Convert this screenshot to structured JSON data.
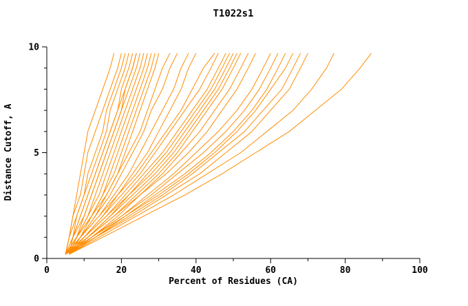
{
  "window": {
    "title": "T1022s1"
  },
  "chart_data": {
    "type": "line",
    "title": "T1022s1",
    "xlabel": "Percent of Residues (CA)",
    "ylabel": "Distance Cutoff, A",
    "xlim": [
      0,
      100
    ],
    "ylim": [
      0,
      10
    ],
    "x_major_ticks": [
      0,
      20,
      40,
      60,
      80,
      100
    ],
    "x_minor_ticks": [
      10,
      30,
      50,
      70,
      90
    ],
    "y_major_ticks": [
      0,
      5,
      10
    ],
    "y_minor_ticks": [
      1,
      2,
      3,
      4,
      6,
      7,
      8,
      9
    ],
    "grid": "off",
    "legend": "none",
    "line_color": "#ff8c00",
    "axis_color": "#000000",
    "background_color": "#ffffff",
    "y_grid": [
      0.2,
      1,
      2,
      3,
      4,
      5,
      6,
      7,
      8,
      9,
      9.7
    ],
    "series": [
      {
        "x_at": [
          5,
          6,
          7,
          8,
          9,
          10,
          11,
          13,
          15,
          17,
          18
        ]
      },
      {
        "x_at": [
          5,
          6,
          7,
          9,
          10,
          11,
          13,
          15,
          17,
          19,
          20
        ]
      },
      {
        "x_at": [
          6,
          7,
          8,
          10,
          11,
          13,
          15,
          16,
          18,
          20,
          21
        ]
      },
      {
        "x_at": [
          5,
          6,
          8,
          10,
          12,
          14,
          16,
          17,
          19,
          21,
          22
        ]
      },
      {
        "x_at": [
          6,
          7,
          9,
          11,
          13,
          15,
          17,
          19,
          20,
          22,
          23
        ]
      },
      {
        "x_at": [
          5,
          7,
          9,
          11,
          13,
          15,
          17,
          19,
          21,
          23,
          24
        ]
      },
      {
        "x_at": [
          6,
          8,
          10,
          12,
          14,
          16,
          18,
          20,
          21,
          23,
          24
        ]
      },
      {
        "x_at": [
          5,
          7,
          10,
          12,
          14,
          16,
          18,
          20,
          22,
          24,
          25
        ]
      },
      {
        "x_at": [
          6,
          8,
          11,
          13,
          15,
          17,
          19,
          21,
          23,
          25,
          26
        ]
      },
      {
        "x_at": [
          5,
          8,
          11,
          14,
          16,
          18,
          20,
          22,
          24,
          26,
          27
        ]
      },
      {
        "x_at": [
          6,
          9,
          12,
          15,
          17,
          19,
          21,
          23,
          25,
          27,
          28
        ]
      },
      {
        "x_at": [
          5,
          8,
          12,
          15,
          18,
          20,
          22,
          24,
          26,
          28,
          29
        ]
      },
      {
        "x_at": [
          6,
          9,
          13,
          16,
          19,
          21,
          23,
          25,
          27,
          29,
          30
        ]
      },
      {
        "x_at": [
          5,
          8,
          12,
          16,
          19,
          22,
          25,
          27,
          29,
          31,
          33
        ]
      },
      {
        "x_at": [
          6,
          9,
          13,
          17,
          20,
          23,
          26,
          28,
          31,
          33,
          35
        ]
      },
      {
        "x_at": [
          5,
          9,
          14,
          18,
          22,
          25,
          28,
          31,
          34,
          36,
          38
        ]
      },
      {
        "x_at": [
          6,
          10,
          15,
          19,
          23,
          27,
          30,
          33,
          36,
          38,
          40
        ]
      },
      {
        "x_at": [
          5,
          9,
          14,
          19,
          24,
          28,
          32,
          36,
          39,
          42,
          45
        ]
      },
      {
        "x_at": [
          6,
          10,
          15,
          20,
          25,
          29,
          33,
          37,
          41,
          44,
          46
        ]
      },
      {
        "x_at": [
          5,
          10,
          16,
          21,
          26,
          31,
          35,
          39,
          43,
          46,
          48
        ]
      },
      {
        "x_at": [
          6,
          11,
          17,
          22,
          27,
          32,
          36,
          40,
          44,
          47,
          49
        ]
      },
      {
        "x_at": [
          5,
          10,
          16,
          22,
          28,
          33,
          37,
          41,
          45,
          48,
          50
        ]
      },
      {
        "x_at": [
          6,
          11,
          17,
          23,
          29,
          34,
          38,
          42,
          46,
          49,
          51
        ]
      },
      {
        "x_at": [
          5,
          11,
          18,
          24,
          30,
          35,
          39,
          43,
          47,
          50,
          52
        ]
      },
      {
        "x_at": [
          6,
          12,
          19,
          25,
          31,
          36,
          41,
          45,
          49,
          52,
          54
        ]
      },
      {
        "x_at": [
          5,
          11,
          18,
          25,
          32,
          38,
          43,
          47,
          51,
          54,
          56
        ]
      },
      {
        "x_at": [
          6,
          12,
          20,
          27,
          34,
          40,
          46,
          51,
          55,
          58,
          60
        ]
      },
      {
        "x_at": [
          5,
          12,
          20,
          28,
          35,
          42,
          48,
          53,
          57,
          60,
          62
        ]
      },
      {
        "x_at": [
          6,
          13,
          21,
          29,
          37,
          44,
          50,
          55,
          59,
          62,
          64
        ]
      },
      {
        "x_at": [
          5,
          12,
          21,
          30,
          38,
          45,
          51,
          56,
          60,
          64,
          66
        ]
      },
      {
        "x_at": [
          6,
          13,
          22,
          31,
          39,
          46,
          53,
          58,
          63,
          66,
          68
        ]
      },
      {
        "x_at": [
          5,
          13,
          23,
          32,
          41,
          48,
          55,
          60,
          65,
          68,
          70
        ]
      },
      {
        "x_at": [
          6,
          14,
          24,
          34,
          43,
          52,
          59,
          66,
          71,
          75,
          77
        ]
      },
      {
        "x_at": [
          6,
          15,
          26,
          37,
          47,
          56,
          65,
          72,
          79,
          84,
          87
        ]
      }
    ]
  }
}
